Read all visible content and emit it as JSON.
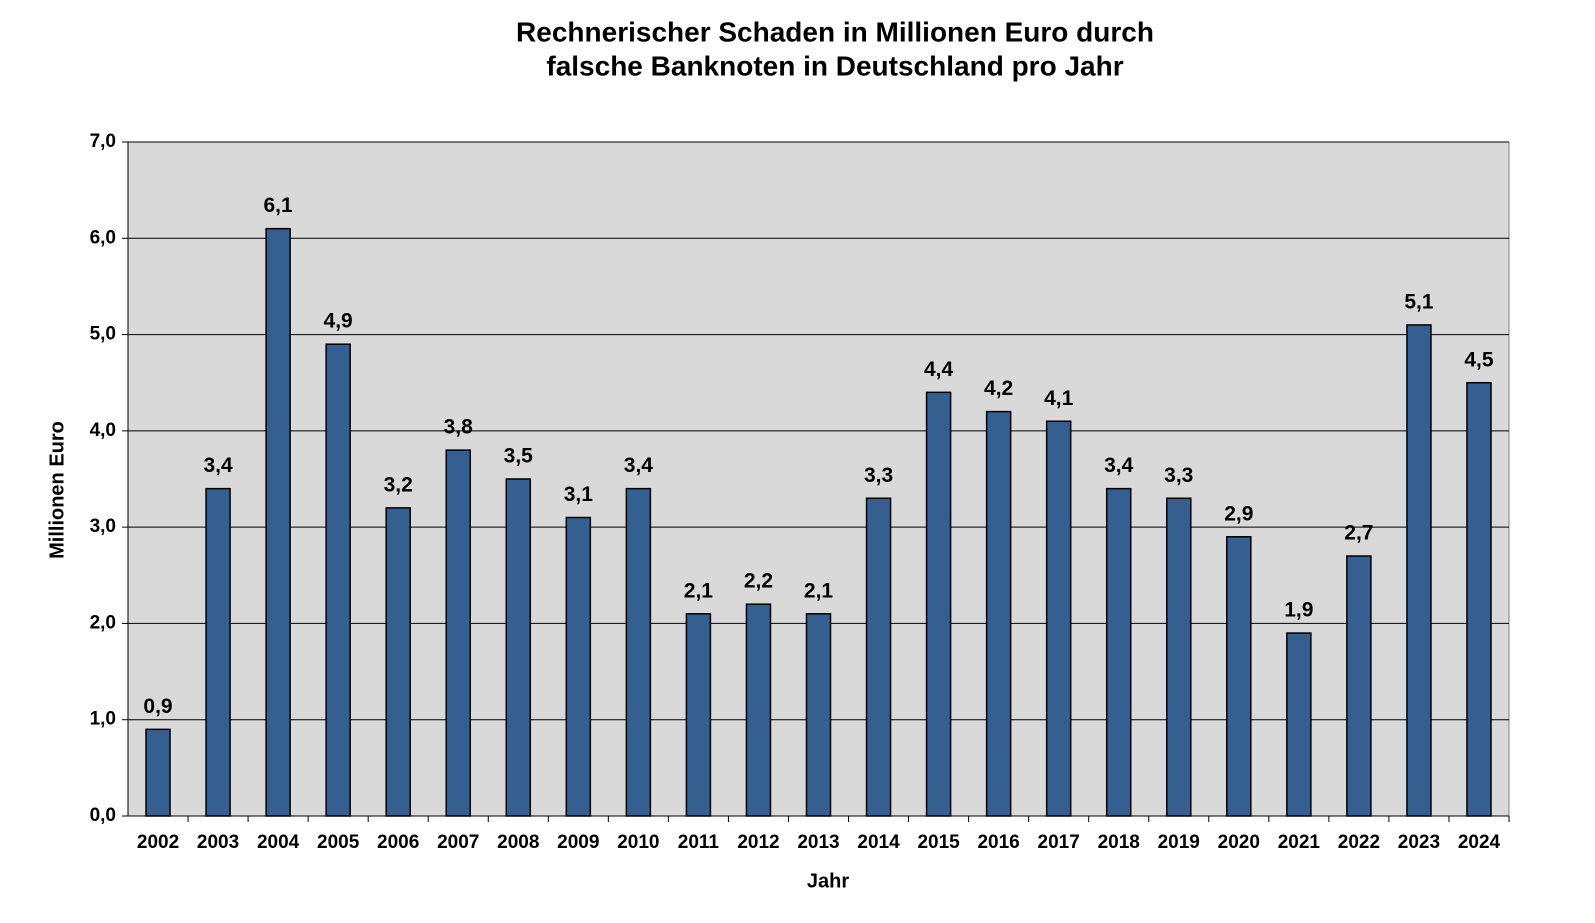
{
  "chart_data": {
    "type": "bar",
    "title": [
      "Rechnerischer Schaden in Millionen Euro durch",
      "falsche Banknoten in Deutschland pro Jahr"
    ],
    "x_label": "Jahr",
    "y_label": "Millionen Euro",
    "categories": [
      "2002",
      "2003",
      "2004",
      "2005",
      "2006",
      "2007",
      "2008",
      "2009",
      "2010",
      "2011",
      "2012",
      "2013",
      "2014",
      "2015",
      "2016",
      "2017",
      "2018",
      "2019",
      "2020",
      "2021",
      "2022",
      "2023",
      "2024"
    ],
    "values": [
      0.9,
      3.4,
      6.1,
      4.9,
      3.2,
      3.8,
      3.5,
      3.1,
      3.4,
      2.1,
      2.2,
      2.1,
      3.3,
      4.4,
      4.2,
      4.1,
      3.4,
      3.3,
      2.9,
      1.9,
      2.7,
      5.1,
      4.5
    ],
    "value_labels": [
      "0,9",
      "3,4",
      "6,1",
      "4,9",
      "3,2",
      "3,8",
      "3,5",
      "3,1",
      "3,4",
      "2,1",
      "2,2",
      "2,1",
      "3,3",
      "4,4",
      "4,2",
      "4,1",
      "3,4",
      "3,3",
      "2,9",
      "1,9",
      "2,7",
      "5,1",
      "4,5"
    ],
    "color": "#355f91",
    "ylim": [
      0,
      7
    ],
    "yticks": [
      {
        "value": 0,
        "label": "0,0"
      },
      {
        "value": 1,
        "label": "1,0"
      },
      {
        "value": 2,
        "label": "2,0"
      },
      {
        "value": 3,
        "label": "3,0"
      },
      {
        "value": 4,
        "label": "4,0"
      },
      {
        "value": 5,
        "label": "5,0"
      },
      {
        "value": 6,
        "label": "6,0"
      },
      {
        "value": 7,
        "label": "7,0"
      }
    ],
    "grid": true
  }
}
